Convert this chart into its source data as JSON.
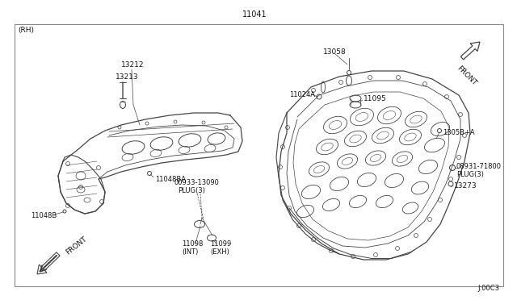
{
  "title": "11041",
  "part_number_bottom_right": "J:00C3",
  "background_color": "#ffffff",
  "border_color": "#888888",
  "line_color": "#444444",
  "text_color": "#111111",
  "label_rh": "(RH)",
  "fig_width": 6.4,
  "fig_height": 3.72,
  "dpi": 100
}
